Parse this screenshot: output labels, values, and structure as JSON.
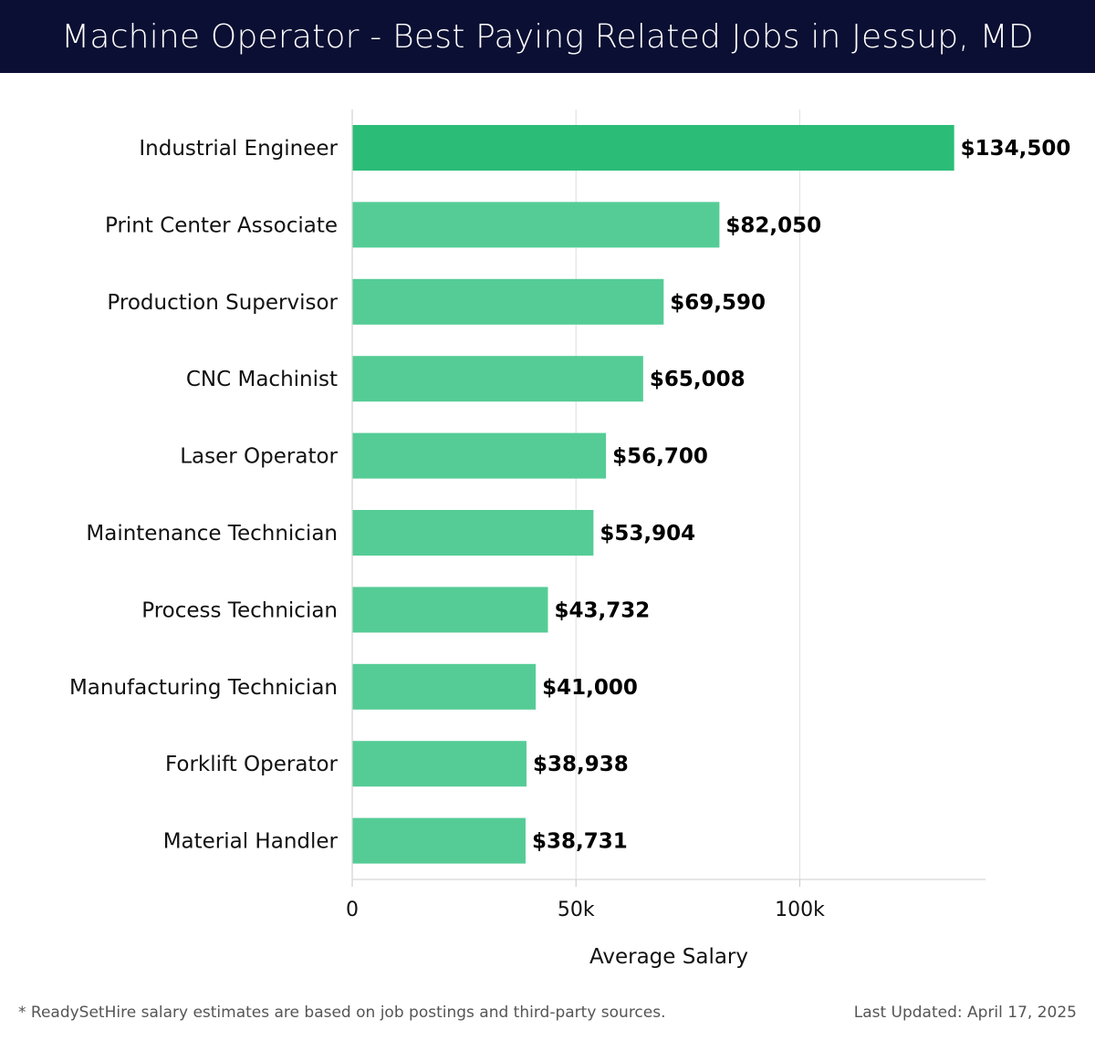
{
  "header": {
    "title": "Machine Operator - Best Paying Related Jobs in Jessup, MD"
  },
  "chart_data": {
    "type": "bar",
    "orientation": "horizontal",
    "categories": [
      "Industrial Engineer",
      "Print Center Associate",
      "Production Supervisor",
      "CNC Machinist",
      "Laser Operator",
      "Maintenance Technician",
      "Process Technician",
      "Manufacturing Technician",
      "Forklift Operator",
      "Material Handler"
    ],
    "values": [
      134500,
      82050,
      69590,
      65008,
      56700,
      53904,
      43732,
      41000,
      38938,
      38731
    ],
    "value_labels": [
      "$134,500",
      "$82,050",
      "$69,590",
      "$65,008",
      "$56,700",
      "$53,904",
      "$43,732",
      "$41,000",
      "$38,938",
      "$38,731"
    ],
    "xlabel": "Average Salary",
    "ylabel": "",
    "xlim": [
      0,
      141500
    ],
    "x_ticks": [
      0,
      50000,
      100000
    ],
    "x_tick_labels": [
      "0",
      "50k",
      "100k"
    ],
    "grid": true,
    "colors": {
      "highlight": "#2bbd77",
      "bar": "#55cc96"
    }
  },
  "footer": {
    "note": "* ReadySetHire salary estimates are based on job postings and third-party sources.",
    "updated": "Last Updated: April 17, 2025"
  }
}
